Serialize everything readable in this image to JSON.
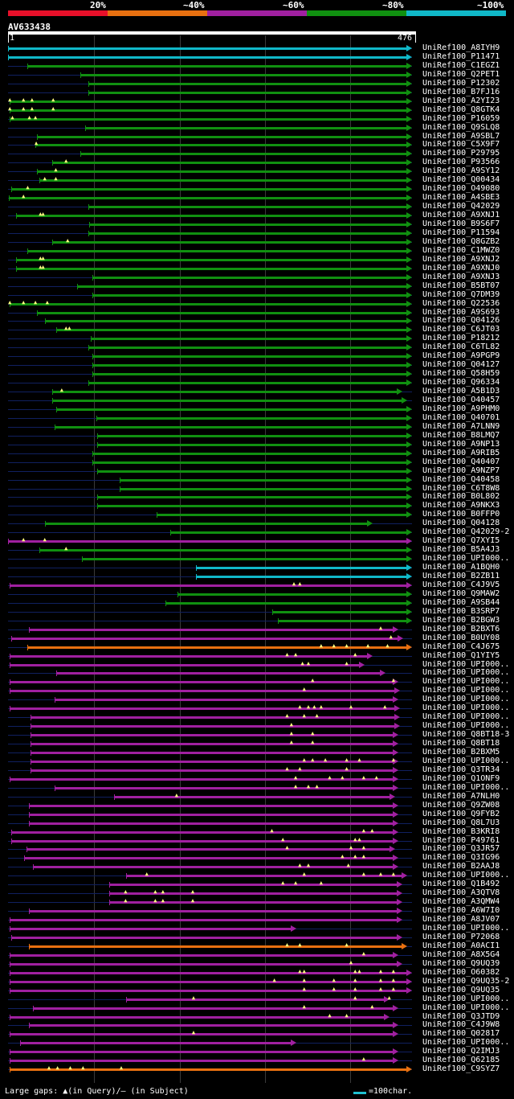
{
  "legend": {
    "labels": [
      "20%",
      "~40%",
      "~60%",
      "~80%",
      "~100%"
    ],
    "colors": [
      "#e8102a",
      "#e87010",
      "#a020a0",
      "#109010",
      "#10b8c8"
    ]
  },
  "query": {
    "id": "AV633438",
    "start_label": "1",
    "end_label": "476"
  },
  "colors": {
    "cyan": "#10b8c8",
    "green": "#109010",
    "magenta": "#a020a0",
    "orange": "#e87010",
    "red": "#e8102a"
  },
  "hits": [
    {
      "name": "UniRef100_A8IYH9",
      "c": "cyan",
      "s": 1,
      "e": 476,
      "g": []
    },
    {
      "name": "UniRef100_P11471",
      "c": "cyan",
      "s": 1,
      "e": 476,
      "g": []
    },
    {
      "name": "UniRef100_C1EGZ1",
      "c": "green",
      "s": 24,
      "e": 476,
      "g": []
    },
    {
      "name": "UniRef100_Q2PET1",
      "c": "green",
      "s": 86,
      "e": 476,
      "g": []
    },
    {
      "name": "UniRef100_P12302",
      "c": "green",
      "s": 95,
      "e": 476,
      "g": []
    },
    {
      "name": "UniRef100_B7FJ16",
      "c": "green",
      "s": 95,
      "e": 476,
      "g": []
    },
    {
      "name": "UniRef100_A2YI23",
      "c": "green",
      "s": 3,
      "e": 476,
      "g": [
        4,
        20,
        30,
        55
      ]
    },
    {
      "name": "UniRef100_Q8GTK4",
      "c": "green",
      "s": 3,
      "e": 476,
      "g": [
        4,
        20,
        30,
        55
      ]
    },
    {
      "name": "UniRef100_P16059",
      "c": "green",
      "s": 3,
      "e": 476,
      "g": [
        7,
        27,
        34
      ]
    },
    {
      "name": "UniRef100_Q9SLQ8",
      "c": "green",
      "s": 92,
      "e": 476,
      "g": []
    },
    {
      "name": "UniRef100_A9SBL7",
      "c": "green",
      "s": 35,
      "e": 476,
      "g": []
    },
    {
      "name": "UniRef100_C5X9F7",
      "c": "green",
      "s": 33,
      "e": 476,
      "g": [
        35
      ]
    },
    {
      "name": "UniRef100_P29795",
      "c": "green",
      "s": 86,
      "e": 476,
      "g": []
    },
    {
      "name": "UniRef100_P93566",
      "c": "green",
      "s": 53,
      "e": 476,
      "g": [
        70
      ]
    },
    {
      "name": "UniRef100_A9SY12",
      "c": "green",
      "s": 35,
      "e": 476,
      "g": [
        58
      ]
    },
    {
      "name": "UniRef100_Q00434",
      "c": "green",
      "s": 38,
      "e": 476,
      "g": [
        45,
        58
      ]
    },
    {
      "name": "UniRef100_O49080",
      "c": "green",
      "s": 5,
      "e": 476,
      "g": [
        25
      ]
    },
    {
      "name": "UniRef100_A4SBE3",
      "c": "green",
      "s": 2,
      "e": 476,
      "g": [
        20
      ]
    },
    {
      "name": "UniRef100_Q42029",
      "c": "green",
      "s": 95,
      "e": 476,
      "g": []
    },
    {
      "name": "UniRef100_A9XNJ1",
      "c": "green",
      "s": 10,
      "e": 476,
      "g": [
        40,
        43
      ]
    },
    {
      "name": "UniRef100_B9S6F7",
      "c": "green",
      "s": 96,
      "e": 476,
      "g": []
    },
    {
      "name": "UniRef100_P11594",
      "c": "green",
      "s": 95,
      "e": 476,
      "g": []
    },
    {
      "name": "UniRef100_Q8GZB2",
      "c": "green",
      "s": 53,
      "e": 476,
      "g": [
        72
      ]
    },
    {
      "name": "UniRef100_C1MWZ0",
      "c": "green",
      "s": 24,
      "e": 476,
      "g": []
    },
    {
      "name": "UniRef100_A9XNJ2",
      "c": "green",
      "s": 10,
      "e": 476,
      "g": [
        40,
        43
      ]
    },
    {
      "name": "UniRef100_A9XNJ0",
      "c": "green",
      "s": 10,
      "e": 476,
      "g": [
        40,
        43
      ]
    },
    {
      "name": "UniRef100_A9XNJ3",
      "c": "green",
      "s": 100,
      "e": 476,
      "g": []
    },
    {
      "name": "UniRef100_B5BT07",
      "c": "green",
      "s": 82,
      "e": 476,
      "g": []
    },
    {
      "name": "UniRef100_Q7DM39",
      "c": "green",
      "s": 100,
      "e": 476,
      "g": []
    },
    {
      "name": "UniRef100_Q22536",
      "c": "green",
      "s": 3,
      "e": 476,
      "g": [
        4,
        20,
        34,
        48
      ]
    },
    {
      "name": "UniRef100_A9S693",
      "c": "green",
      "s": 35,
      "e": 476,
      "g": []
    },
    {
      "name": "UniRef100_Q04126",
      "c": "green",
      "s": 44,
      "e": 476,
      "g": []
    },
    {
      "name": "UniRef100_C6JT03",
      "c": "green",
      "s": 58,
      "e": 476,
      "g": [
        70,
        74
      ]
    },
    {
      "name": "UniRef100_P18212",
      "c": "green",
      "s": 98,
      "e": 476,
      "g": []
    },
    {
      "name": "UniRef100_C6TL82",
      "c": "green",
      "s": 95,
      "e": 476,
      "g": []
    },
    {
      "name": "UniRef100_A9PGP9",
      "c": "green",
      "s": 100,
      "e": 476,
      "g": []
    },
    {
      "name": "UniRef100_Q04127",
      "c": "green",
      "s": 100,
      "e": 476,
      "g": []
    },
    {
      "name": "UniRef100_Q58H59",
      "c": "green",
      "s": 100,
      "e": 476,
      "g": []
    },
    {
      "name": "UniRef100_Q96334",
      "c": "green",
      "s": 95,
      "e": 476,
      "g": []
    },
    {
      "name": "UniRef100_A5B1D3",
      "c": "green",
      "s": 53,
      "e": 465,
      "g": [
        65
      ]
    },
    {
      "name": "UniRef100_O40457",
      "c": "green",
      "s": 53,
      "e": 470,
      "g": []
    },
    {
      "name": "UniRef100_A9PHM0",
      "c": "green",
      "s": 58,
      "e": 476,
      "g": []
    },
    {
      "name": "UniRef100_Q40701",
      "c": "green",
      "s": 105,
      "e": 476,
      "g": []
    },
    {
      "name": "UniRef100_A7LNN9",
      "c": "green",
      "s": 56,
      "e": 476,
      "g": []
    },
    {
      "name": "UniRef100_B8LMQ7",
      "c": "green",
      "s": 106,
      "e": 476,
      "g": []
    },
    {
      "name": "UniRef100_A9NP13",
      "c": "green",
      "s": 106,
      "e": 476,
      "g": []
    },
    {
      "name": "UniRef100_A9RIB5",
      "c": "green",
      "s": 100,
      "e": 476,
      "g": []
    },
    {
      "name": "UniRef100_Q40407",
      "c": "green",
      "s": 100,
      "e": 476,
      "g": []
    },
    {
      "name": "UniRef100_A9NZP7",
      "c": "green",
      "s": 106,
      "e": 476,
      "g": []
    },
    {
      "name": "UniRef100_Q40458",
      "c": "green",
      "s": 132,
      "e": 476,
      "g": []
    },
    {
      "name": "UniRef100_C6T8W8",
      "c": "green",
      "s": 132,
      "e": 476,
      "g": []
    },
    {
      "name": "UniRef100_B0L802",
      "c": "green",
      "s": 106,
      "e": 476,
      "g": []
    },
    {
      "name": "UniRef100_A9NKX3",
      "c": "green",
      "s": 106,
      "e": 476,
      "g": []
    },
    {
      "name": "UniRef100_B0FFP0",
      "c": "green",
      "s": 176,
      "e": 476,
      "g": []
    },
    {
      "name": "UniRef100_Q04128",
      "c": "green",
      "s": 44,
      "e": 430,
      "g": []
    },
    {
      "name": "UniRef100_Q42029-2",
      "c": "green",
      "s": 192,
      "e": 476,
      "g": []
    },
    {
      "name": "UniRef100_Q7XYI5",
      "c": "magenta",
      "s": 1,
      "e": 476,
      "g": [
        20,
        45
      ]
    },
    {
      "name": "UniRef100_B5A4J3",
      "c": "green",
      "s": 38,
      "e": 476,
      "g": [
        70
      ]
    },
    {
      "name": "UniRef100_UPI000..",
      "c": "green",
      "s": 88,
      "e": 476,
      "g": []
    },
    {
      "name": "UniRef100_A1BQH0",
      "c": "cyan",
      "s": 222,
      "e": 476,
      "g": []
    },
    {
      "name": "UniRef100_B2ZB11",
      "c": "cyan",
      "s": 222,
      "e": 476,
      "g": []
    },
    {
      "name": "UniRef100_C4J9V5",
      "c": "magenta",
      "s": 3,
      "e": 476,
      "g": [
        338,
        345
      ]
    },
    {
      "name": "UniRef100_Q9MAW2",
      "c": "green",
      "s": 200,
      "e": 476,
      "g": []
    },
    {
      "name": "UniRef100_A9SB44",
      "c": "green",
      "s": 186,
      "e": 476,
      "g": []
    },
    {
      "name": "UniRef100_B3SRP7",
      "c": "green",
      "s": 312,
      "e": 476,
      "g": []
    },
    {
      "name": "UniRef100_B2BGW3",
      "c": "green",
      "s": 318,
      "e": 476,
      "g": []
    },
    {
      "name": "UniRef100_B2BXT6",
      "c": "magenta",
      "s": 26,
      "e": 460,
      "g": [
        440
      ]
    },
    {
      "name": "UniRef100_B0UY08",
      "c": "magenta",
      "s": 5,
      "e": 466,
      "g": [
        452
      ]
    },
    {
      "name": "UniRef100_C4J675",
      "c": "orange",
      "s": 24,
      "e": 476,
      "g": [
        370,
        385,
        400,
        425,
        448
      ]
    },
    {
      "name": "UniRef100_Q1YIY5",
      "c": "magenta",
      "s": 3,
      "e": 430,
      "g": [
        330,
        340,
        410
      ]
    },
    {
      "name": "UniRef100_UPI000..",
      "c": "magenta",
      "s": 3,
      "e": 420,
      "g": [
        348,
        355,
        400
      ]
    },
    {
      "name": "UniRef100_UPI000..",
      "c": "magenta",
      "s": 58,
      "e": 445,
      "g": []
    },
    {
      "name": "UniRef100_UPI000..",
      "c": "magenta",
      "s": 3,
      "e": 460,
      "g": [
        360,
        455
      ]
    },
    {
      "name": "UniRef100_UPI000..",
      "c": "magenta",
      "s": 3,
      "e": 462,
      "g": [
        350
      ]
    },
    {
      "name": "UniRef100_UPI000..",
      "c": "magenta",
      "s": 56,
      "e": 460,
      "g": []
    },
    {
      "name": "UniRef100_UPI000..",
      "c": "magenta",
      "s": 3,
      "e": 462,
      "g": [
        345,
        355,
        362,
        370,
        405,
        445
      ]
    },
    {
      "name": "UniRef100_UPI000..",
      "c": "magenta",
      "s": 27,
      "e": 462,
      "g": [
        330,
        350,
        365
      ]
    },
    {
      "name": "UniRef100_UPI000..",
      "c": "magenta",
      "s": 27,
      "e": 462,
      "g": [
        335
      ]
    },
    {
      "name": "UniRef100_Q8BT18-3",
      "c": "magenta",
      "s": 27,
      "e": 460,
      "g": [
        335,
        360
      ]
    },
    {
      "name": "UniRef100_Q8BT18",
      "c": "magenta",
      "s": 27,
      "e": 460,
      "g": [
        335,
        360
      ]
    },
    {
      "name": "UniRef100_B2BXM5",
      "c": "magenta",
      "s": 27,
      "e": 460,
      "g": []
    },
    {
      "name": "UniRef100_UPI000..",
      "c": "magenta",
      "s": 27,
      "e": 460,
      "g": [
        350,
        360,
        375,
        400,
        415,
        455
      ]
    },
    {
      "name": "UniRef100_Q3TR34",
      "c": "magenta",
      "s": 27,
      "e": 460,
      "g": [
        330,
        345,
        400
      ]
    },
    {
      "name": "UniRef100_Q1ONF9",
      "c": "magenta",
      "s": 3,
      "e": 460,
      "g": [
        340,
        380,
        395,
        420,
        435
      ]
    },
    {
      "name": "UniRef100_UPI000..",
      "c": "magenta",
      "s": 56,
      "e": 460,
      "g": [
        340,
        355,
        365
      ]
    },
    {
      "name": "UniRef100_A7NLH0",
      "c": "magenta",
      "s": 126,
      "e": 456,
      "g": [
        200
      ]
    },
    {
      "name": "UniRef100_Q9ZW08",
      "c": "magenta",
      "s": 26,
      "e": 460,
      "g": []
    },
    {
      "name": "UniRef100_Q9FYB2",
      "c": "magenta",
      "s": 26,
      "e": 460,
      "g": []
    },
    {
      "name": "UniRef100_Q8L7U3",
      "c": "magenta",
      "s": 26,
      "e": 460,
      "g": []
    },
    {
      "name": "UniRef100_B3KRI8",
      "c": "magenta",
      "s": 5,
      "e": 460,
      "g": [
        312,
        420,
        430
      ]
    },
    {
      "name": "UniRef100_P49761",
      "c": "magenta",
      "s": 5,
      "e": 460,
      "g": [
        325,
        410,
        415
      ]
    },
    {
      "name": "UniRef100_Q3JR57",
      "c": "magenta",
      "s": 23,
      "e": 456,
      "g": [
        330,
        405,
        420
      ]
    },
    {
      "name": "UniRef100_Q3IG96",
      "c": "magenta",
      "s": 20,
      "e": 460,
      "g": [
        395,
        410,
        420
      ]
    },
    {
      "name": "UniRef100_B2AAJ8",
      "c": "magenta",
      "s": 30,
      "e": 460,
      "g": [
        345,
        355,
        402
      ]
    },
    {
      "name": "UniRef100_UPI000..",
      "c": "magenta",
      "s": 140,
      "e": 470,
      "g": [
        165,
        350,
        420,
        440,
        455
      ]
    },
    {
      "name": "UniRef100_Q1B492",
      "c": "magenta",
      "s": 120,
      "e": 465,
      "g": [
        325,
        340,
        370
      ]
    },
    {
      "name": "UniRef100_A3QTV8",
      "c": "magenta",
      "s": 120,
      "e": 465,
      "g": [
        140,
        175,
        184,
        219
      ]
    },
    {
      "name": "UniRef100_A3QMW4",
      "c": "magenta",
      "s": 120,
      "e": 465,
      "g": [
        140,
        175,
        184,
        219
      ]
    },
    {
      "name": "UniRef100_A6W7I0",
      "c": "magenta",
      "s": 26,
      "e": 465,
      "g": []
    },
    {
      "name": "UniRef100_A8JV07",
      "c": "magenta",
      "s": 3,
      "e": 465,
      "g": []
    },
    {
      "name": "UniRef100_UPI000..",
      "c": "magenta",
      "s": 3,
      "e": 340,
      "g": []
    },
    {
      "name": "UniRef100_P72068",
      "c": "magenta",
      "s": 5,
      "e": 465,
      "g": []
    },
    {
      "name": "UniRef100_A0ACI1",
      "c": "orange",
      "s": 26,
      "e": 470,
      "g": [
        330,
        345,
        400
      ]
    },
    {
      "name": "UniRef100_A8X5G4",
      "c": "magenta",
      "s": 3,
      "e": 460,
      "g": [
        420
      ]
    },
    {
      "name": "UniRef100_Q9UQ39",
      "c": "magenta",
      "s": 3,
      "e": 465,
      "g": [
        405
      ]
    },
    {
      "name": "UniRef100_O60382",
      "c": "magenta",
      "s": 3,
      "e": 476,
      "g": [
        345,
        350,
        410,
        415,
        440,
        455
      ]
    },
    {
      "name": "UniRef100_Q9UQ35-2",
      "c": "magenta",
      "s": 3,
      "e": 476,
      "g": [
        315,
        350,
        385,
        410,
        440,
        455
      ]
    },
    {
      "name": "UniRef100_Q9UQ35",
      "c": "magenta",
      "s": 3,
      "e": 476,
      "g": [
        350,
        385,
        410,
        440,
        455
      ]
    },
    {
      "name": "UniRef100_UPI000..",
      "c": "magenta",
      "s": 140,
      "e": 450,
      "g": [
        220,
        410,
        450
      ]
    },
    {
      "name": "UniRef100_UPI000..",
      "c": "magenta",
      "s": 30,
      "e": 460,
      "g": [
        350,
        430
      ]
    },
    {
      "name": "UniRef100_Q3JTD9",
      "c": "magenta",
      "s": 3,
      "e": 450,
      "g": [
        380,
        400
      ]
    },
    {
      "name": "UniRef100_C4J9W8",
      "c": "magenta",
      "s": 26,
      "e": 460,
      "g": []
    },
    {
      "name": "UniRef100_Q02817",
      "c": "magenta",
      "s": 3,
      "e": 460,
      "g": [
        220
      ]
    },
    {
      "name": "UniRef100_UPI000..",
      "c": "magenta",
      "s": 15,
      "e": 340,
      "g": []
    },
    {
      "name": "UniRef100_Q2IMJ3",
      "c": "magenta",
      "s": 3,
      "e": 460,
      "g": []
    },
    {
      "name": "UniRef100_Q62185",
      "c": "magenta",
      "s": 3,
      "e": 460,
      "g": [
        420
      ]
    },
    {
      "name": "UniRef100_C9SYZ7",
      "c": "orange",
      "s": 3,
      "e": 476,
      "g": [
        50,
        60,
        75,
        90,
        135
      ]
    }
  ],
  "footer": {
    "gaps_text": "Large gaps: ▲(in Query)/— (in Subject)",
    "scale_text": "=100char."
  }
}
